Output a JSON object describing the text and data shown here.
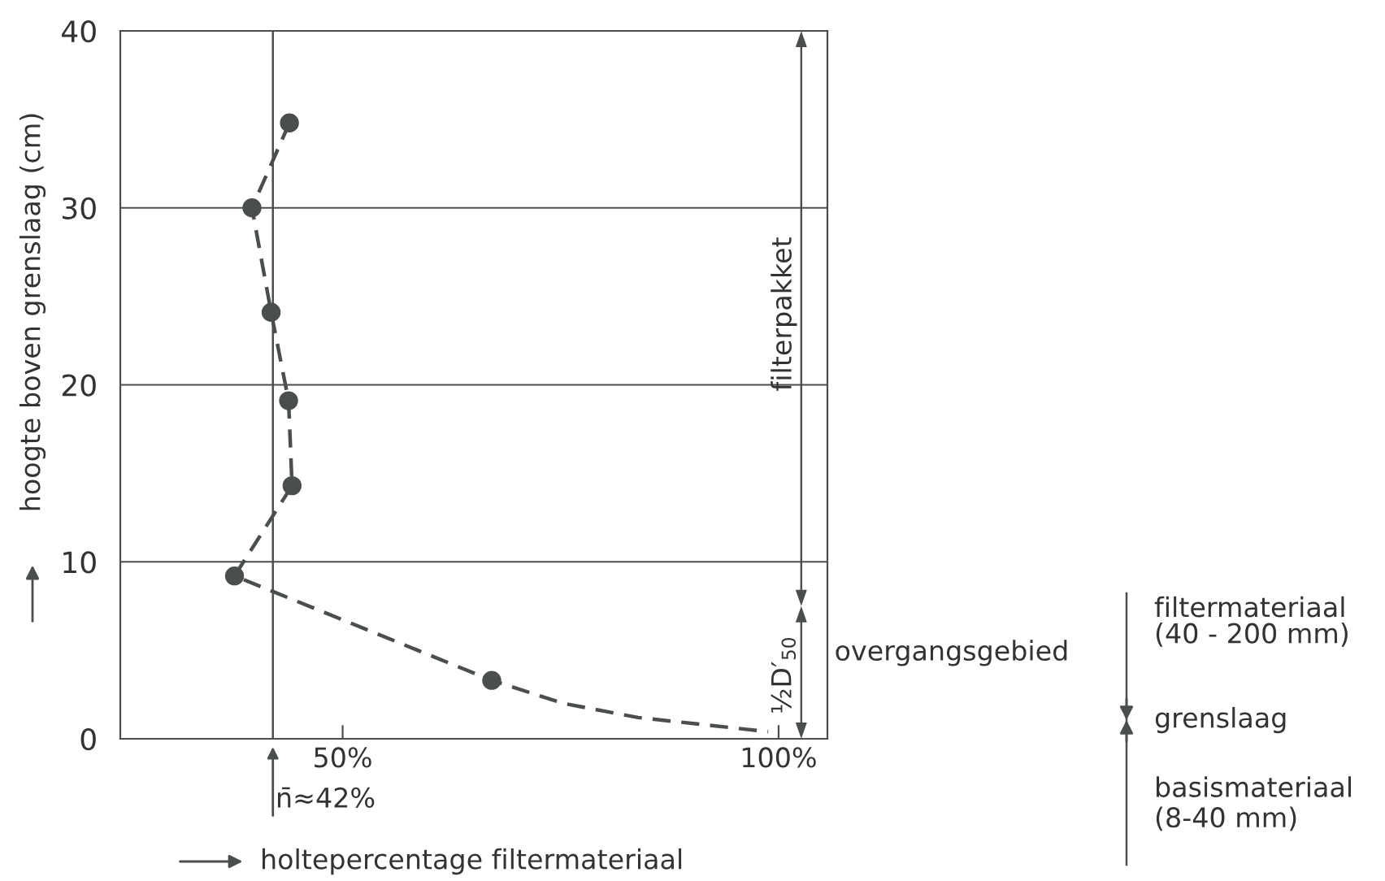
{
  "chart_data": {
    "type": "line",
    "xlabel": "holtepercentage filtermateriaal",
    "ylabel": "hoogte boven grenslaag (cm)",
    "series": [
      {
        "color": "#4a4f4c",
        "line_style": "dashed",
        "marker": "none",
        "x": [
          43.9,
          39.6,
          41.8,
          43.8,
          44.2,
          37.6,
          67.1,
          75.3,
          83.9,
          98.8
        ],
        "values": [
          34.8,
          30.0,
          24.1,
          19.1,
          14.3,
          9.2,
          3.3,
          2.0,
          1.2,
          0.4
        ]
      },
      {
        "type": "scatter",
        "color": "#4a4f4c",
        "marker": "circle",
        "x": [
          43.9,
          39.6,
          41.8,
          43.8,
          44.2,
          37.6,
          67.1
        ],
        "values": [
          34.8,
          30.0,
          24.1,
          19.1,
          14.3,
          9.2,
          3.3
        ]
      }
    ],
    "xlim": [
      24.5,
      105.6
    ],
    "ylim": [
      0,
      40
    ],
    "xticks": [
      {
        "value": 50,
        "label": "50%"
      },
      {
        "value": 100,
        "label": "100%"
      }
    ],
    "yticks": [
      0,
      10,
      20,
      30,
      40
    ],
    "grid": "y",
    "ref_lines": [
      {
        "axis": "x",
        "value": 42,
        "label": "n̄≈42%",
        "color": "#4a4f4c"
      }
    ],
    "annotations": [
      "filterpakket",
      "½D′$_{50}$",
      "overgangsgebied",
      "filtermateriaal\n(40 - 200 mm)",
      "grenslaag",
      "basismateriaal\n(8-40 mm)"
    ]
  }
}
